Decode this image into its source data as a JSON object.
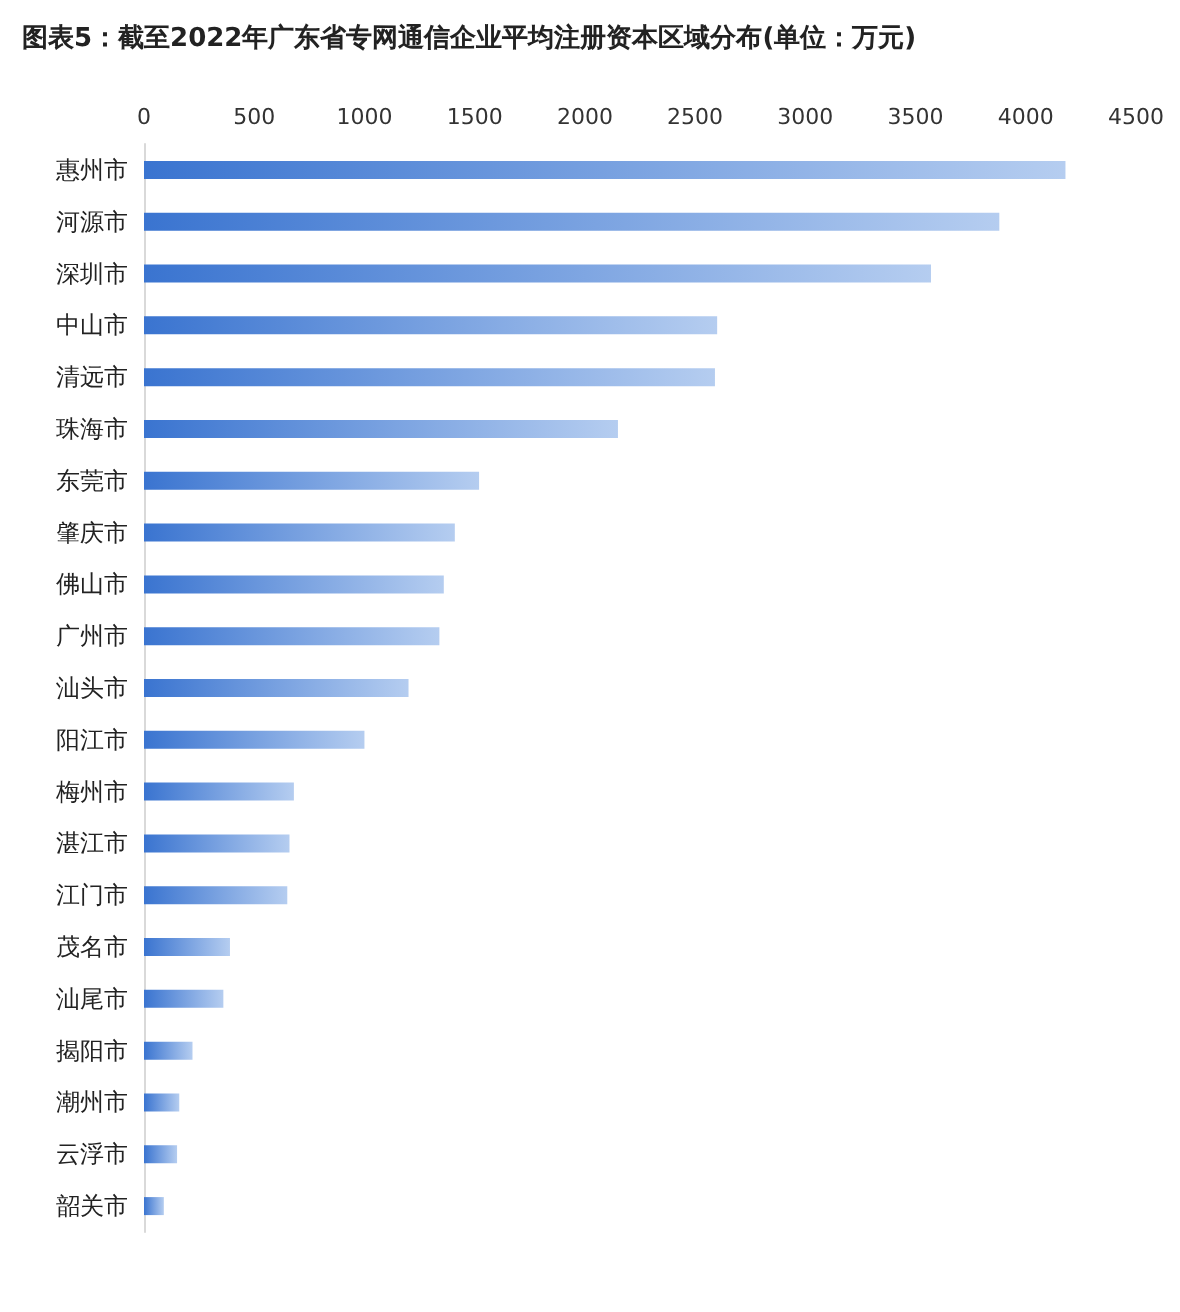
{
  "chart_data": {
    "type": "bar",
    "orientation": "horizontal",
    "title": "图表5：截至2022年广东省专网通信企业平均注册资本区域分布(单位：万元)",
    "categories": [
      "惠州市",
      "河源市",
      "深圳市",
      "中山市",
      "清远市",
      "珠海市",
      "东莞市",
      "肇庆市",
      "佛山市",
      "广州市",
      "汕头市",
      "阳江市",
      "梅州市",
      "湛江市",
      "江门市",
      "茂名市",
      "汕尾市",
      "揭阳市",
      "潮州市",
      "云浮市",
      "韶关市"
    ],
    "values": [
      4180,
      3880,
      3570,
      2600,
      2590,
      2150,
      1520,
      1410,
      1360,
      1340,
      1200,
      1000,
      680,
      660,
      650,
      390,
      360,
      220,
      160,
      150,
      90
    ],
    "color": "#3a74d0",
    "xlim": [
      0,
      4500
    ],
    "xticks": [
      0,
      500,
      1000,
      1500,
      2000,
      2500,
      3000,
      3500,
      4000,
      4500
    ],
    "grid": false
  }
}
